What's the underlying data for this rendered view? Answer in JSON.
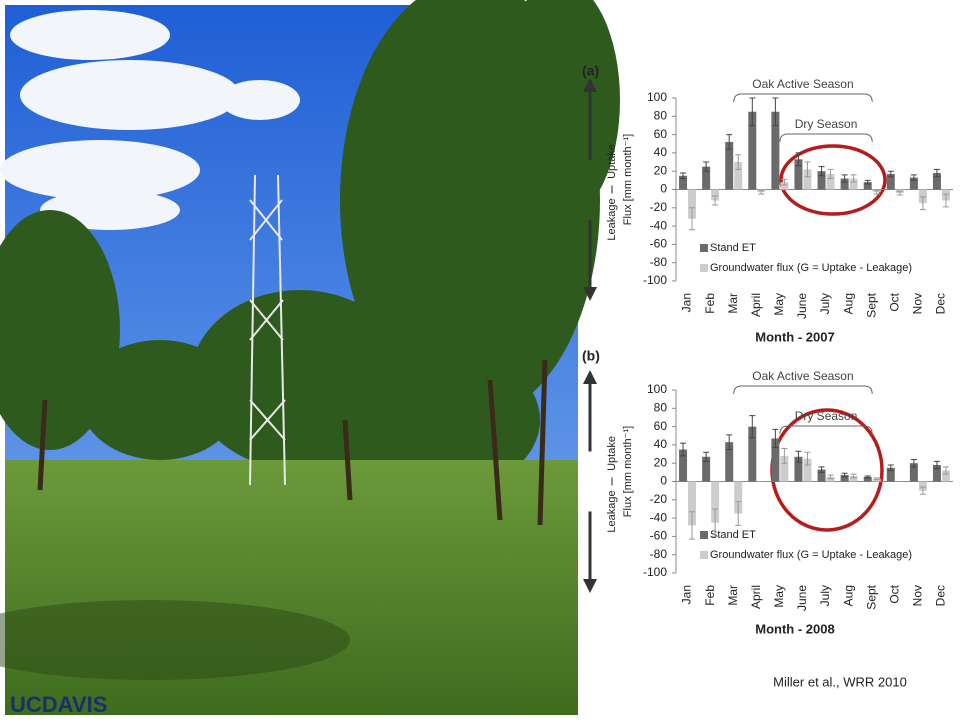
{
  "chart_data": [
    {
      "type": "bar",
      "label": "(a)",
      "xlabel": "Month - 2007",
      "ylabel": "Flux [mm month⁻¹]",
      "side_labels": [
        "Uptake",
        "Leakage"
      ],
      "categories": [
        "Jan",
        "Feb",
        "Mar",
        "April",
        "May",
        "June",
        "July",
        "Aug",
        "Sept",
        "Oct",
        "Nov",
        "Dec"
      ],
      "series": [
        {
          "name": "Stand ET",
          "color": "#6b6b6b",
          "values": [
            15,
            25,
            52,
            85,
            85,
            33,
            20,
            12,
            8,
            17,
            13,
            18
          ],
          "errors": [
            3,
            5,
            8,
            15,
            15,
            7,
            5,
            4,
            2,
            3,
            3,
            4
          ]
        },
        {
          "name": "Groundwater flux (G = Uptake    - Leakage)",
          "color": "#cdcdcd",
          "values": [
            -32,
            -12,
            30,
            -3,
            8,
            22,
            17,
            12,
            -3,
            -4,
            -15,
            -12
          ],
          "errors": [
            12,
            5,
            8,
            2,
            3,
            8,
            5,
            4,
            2,
            2,
            7,
            7
          ]
        }
      ],
      "annotations": [
        {
          "text": "Oak Active Season",
          "from": "Mar",
          "to": "Sept"
        },
        {
          "text": "Dry Season",
          "from": "May",
          "to": "Sept"
        }
      ],
      "ylim": [
        -100,
        100
      ],
      "yticks": [
        -100,
        -80,
        -60,
        -40,
        -20,
        0,
        20,
        40,
        60,
        80,
        100
      ]
    },
    {
      "type": "bar",
      "label": "(b)",
      "xlabel": "Month - 2008",
      "ylabel": "Flux [mm month⁻¹]",
      "side_labels": [
        "Uptake",
        "Leakage"
      ],
      "categories": [
        "Jan",
        "Feb",
        "Mar",
        "April",
        "May",
        "June",
        "July",
        "Aug",
        "Sept",
        "Oct",
        "Nov",
        "Dec"
      ],
      "series": [
        {
          "name": "Stand ET",
          "color": "#6b6b6b",
          "values": [
            35,
            27,
            43,
            60,
            47,
            27,
            13,
            7,
            5,
            15,
            20,
            18
          ],
          "errors": [
            7,
            5,
            8,
            12,
            10,
            6,
            3,
            2,
            1,
            3,
            4,
            4
          ]
        },
        {
          "name": "Groundwater flux (G = Uptake    - Leakage)",
          "color": "#cdcdcd",
          "values": [
            -48,
            -45,
            -35,
            0,
            28,
            25,
            5,
            6,
            3,
            0,
            -10,
            12
          ],
          "errors": [
            15,
            15,
            13,
            0,
            8,
            7,
            2,
            2,
            1,
            0,
            4,
            4
          ]
        }
      ],
      "annotations": [
        {
          "text": "Oak Active Season",
          "from": "Mar",
          "to": "Sept"
        },
        {
          "text": "Dry Season",
          "from": "May",
          "to": "Sept"
        }
      ],
      "ylim": [
        -100,
        100
      ],
      "yticks": [
        -100,
        -80,
        -60,
        -40,
        -20,
        0,
        20,
        40,
        60,
        80,
        100
      ]
    }
  ],
  "citation": "Miller et al., WRR 2010",
  "logo": "UCDAVIS"
}
